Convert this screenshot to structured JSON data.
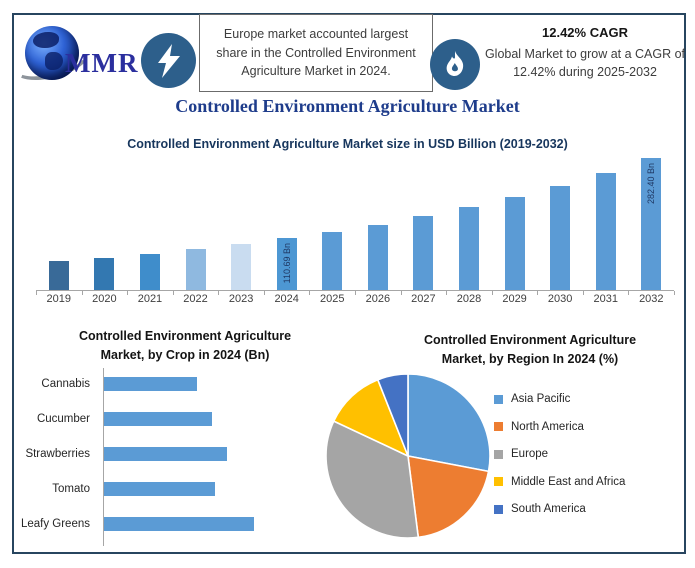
{
  "header": {
    "logo": {
      "text": "MMR"
    },
    "highlight": {
      "text": "Europe market accounted largest share in the Controlled Environment Agriculture Market in 2024."
    },
    "cagr": {
      "title": "12.42% CAGR",
      "text": "Global Market to grow at a CAGR of 12.42% during 2025-2032"
    }
  },
  "main_title": "Controlled Environment Agriculture Market",
  "colors": {
    "frame": "#27455f",
    "icon_circle": "#2d5f8b",
    "main_title": "#1e3c8b",
    "chart_title": "#17365d",
    "axis_gray": "#a6a6a6",
    "bar_primary": "#5b9bd5",
    "bar_label": "#1f3864"
  },
  "chart_data": [
    {
      "type": "bar",
      "title": "Controlled Environment Agriculture Market size in USD Billion (2019-2032)",
      "categories": [
        "2019",
        "2020",
        "2021",
        "2022",
        "2023",
        "2024",
        "2025",
        "2026",
        "2027",
        "2028",
        "2029",
        "2030",
        "2031",
        "2032"
      ],
      "values": [
        61.6,
        69.3,
        77.9,
        87.6,
        98.5,
        110.69,
        124.44,
        139.9,
        157.27,
        176.81,
        198.77,
        223.46,
        251.22,
        282.4
      ],
      "labeled_values": {
        "2024": "110.69 Bn",
        "2032": "282.40 Bn"
      },
      "bar_colors": [
        "#396a98",
        "#3378b1",
        "#3f8dcb",
        "#8fb9e0",
        "#c9dcf0",
        "#4d97d3",
        "#5b9bd5",
        "#5b9bd5",
        "#5b9bd5",
        "#5b9bd5",
        "#5b9bd5",
        "#5b9bd5",
        "#5b9bd5",
        "#5b9bd5"
      ],
      "ylabel": "USD Billion",
      "ylim": [
        0,
        285
      ],
      "grid": false
    },
    {
      "type": "bar",
      "orientation": "horizontal",
      "title": "Controlled Environment Agriculture Market, by Crop in 2024 (Bn)",
      "categories": [
        "Cannabis",
        "Cucumber",
        "Strawberries",
        "Tomato",
        "Leafy Greens"
      ],
      "values": [
        6.2,
        7.2,
        8.2,
        7.4,
        10
      ],
      "xlim": [
        0,
        15
      ],
      "bar_color": "#5b9bd5",
      "grid": false
    },
    {
      "type": "pie",
      "title": "Controlled Environment Agriculture Market, by Region In 2024 (%)",
      "labels": [
        "Asia Pacific",
        "North America",
        "Europe",
        "Middle East and Africa",
        "South America"
      ],
      "values": [
        28,
        20,
        34,
        12,
        6
      ],
      "colors": [
        "#5b9bd5",
        "#ed7d31",
        "#a5a5a5",
        "#ffc000",
        "#4472c4"
      ],
      "legend_position": "right",
      "start_angle_deg": 0,
      "direction": "clockwise"
    }
  ]
}
